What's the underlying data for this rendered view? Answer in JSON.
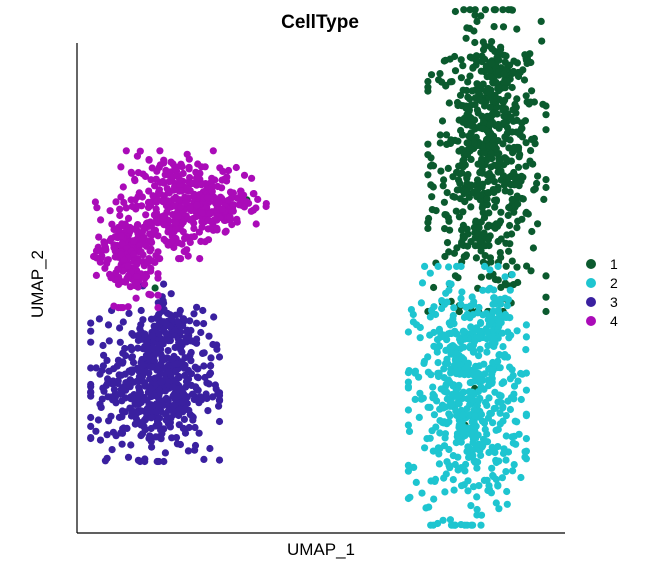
{
  "chart_data": {
    "type": "scatter",
    "title": "CellType",
    "xlabel": "UMAP_1",
    "ylabel": "UMAP_2",
    "grid": false,
    "legend_position": "right",
    "xlim": [
      0,
      100
    ],
    "ylim": [
      0,
      100
    ],
    "series": [
      {
        "name": "1",
        "color": "#0b5a2e",
        "clusters": [
          {
            "cx": 84,
            "cy": 76,
            "sx": 5.5,
            "sy": 14,
            "n": 620
          },
          {
            "cx": 87,
            "cy": 94,
            "sx": 2.2,
            "sy": 2.5,
            "n": 60
          }
        ],
        "points": [
          [
            34.8,
            68.0
          ],
          [
            81.5,
            29.5
          ],
          [
            82.0,
            26.0
          ],
          [
            79.5,
            22.0
          ],
          [
            8.0,
            58.0
          ],
          [
            16.0,
            50.0
          ]
        ]
      },
      {
        "name": "2",
        "color": "#1ec5d0",
        "clusters": [
          {
            "cx": 80,
            "cy": 28,
            "sx": 5.5,
            "sy": 12,
            "n": 560
          },
          {
            "cx": 86,
            "cy": 43,
            "sx": 1.5,
            "sy": 3,
            "n": 40
          }
        ],
        "points": []
      },
      {
        "name": "3",
        "color": "#3a20a0",
        "clusters": [
          {
            "cx": 16,
            "cy": 30,
            "sx": 6,
            "sy": 7,
            "n": 520
          },
          {
            "cx": 19,
            "cy": 42,
            "sx": 2.5,
            "sy": 4,
            "n": 80
          }
        ],
        "points": []
      },
      {
        "name": "4",
        "color": "#aa0bb8",
        "clusters": [
          {
            "cx": 20,
            "cy": 67,
            "sx": 5,
            "sy": 5,
            "n": 280
          },
          {
            "cx": 10,
            "cy": 57,
            "sx": 3,
            "sy": 5,
            "n": 200
          },
          {
            "cx": 30,
            "cy": 68,
            "sx": 4,
            "sy": 3,
            "n": 120
          }
        ],
        "points": []
      }
    ]
  }
}
